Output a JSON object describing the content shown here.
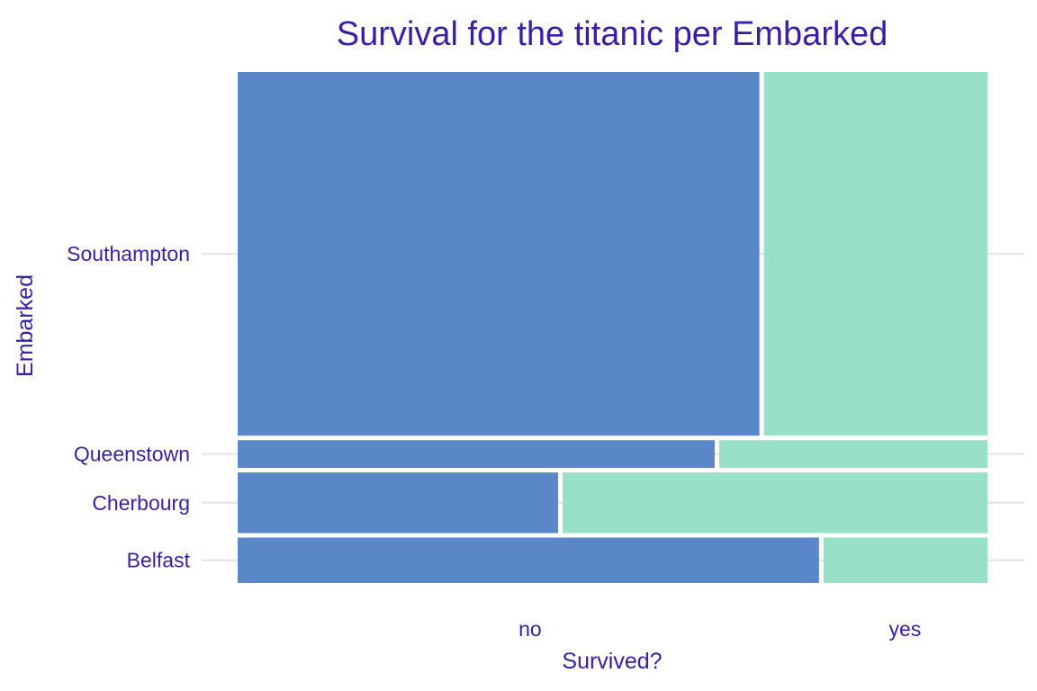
{
  "chart_data": {
    "type": "mosaic",
    "title": "Survival for the titanic per Embarked",
    "xlabel": "Survived?",
    "ylabel": "Embarked",
    "x_categories": [
      "no",
      "yes"
    ],
    "y_categories": [
      "Southampton",
      "Queenstown",
      "Cherbourg",
      "Belfast"
    ],
    "embarked_share": {
      "Southampton": 0.72,
      "Queenstown": 0.055,
      "Cherbourg": 0.12,
      "Belfast": 0.09
    },
    "survived_no_share": {
      "Southampton": 0.7,
      "Queenstown": 0.64,
      "Cherbourg": 0.43,
      "Belfast": 0.78
    },
    "x_tick_positions": {
      "no": 0.39,
      "yes": 0.89
    },
    "colors": {
      "no": "#5a87c8",
      "yes": "#98e0c8"
    },
    "grid": true
  }
}
